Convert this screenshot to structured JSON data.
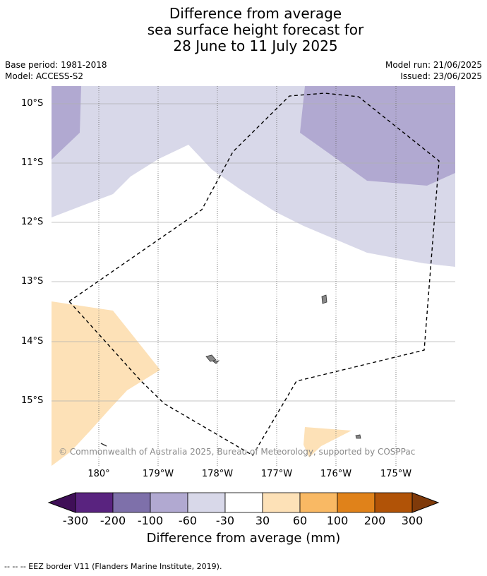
{
  "title_lines": [
    "Difference from average",
    "sea surface height forecast for",
    "28 June to 11 July 2025"
  ],
  "base_period": "Base period: 1981-2018",
  "model": "Model: ACCESS-S2",
  "model_run": "Model run: 21/06/2025",
  "issued": "Issued: 23/06/2025",
  "lat_labels": [
    "10°S",
    "11°S",
    "12°S",
    "13°S",
    "14°S",
    "15°S"
  ],
  "lon_labels": [
    "180°",
    "179°W",
    "178°W",
    "177°W",
    "176°W",
    "175°W"
  ],
  "credit": "© Commonwealth of Australia 2025, Bureau of Meteorology, supported by COSPPac",
  "colorbar": {
    "title": "Difference from average (mm)",
    "labels": [
      "-300",
      "-200",
      "-100",
      "-60",
      "-30",
      "30",
      "60",
      "100",
      "200",
      "300"
    ],
    "colors": [
      "#3f0f57",
      "#59237f",
      "#7e70aa",
      "#b1a9d1",
      "#d8d8e9",
      "#ffffff",
      "#fde1b7",
      "#f9b964",
      "#e0821a",
      "#b15307",
      "#7f3a0a"
    ]
  },
  "eez_note": "-- -- -- EEZ border V11 (Flanders Marine Institute, 2019)."
}
